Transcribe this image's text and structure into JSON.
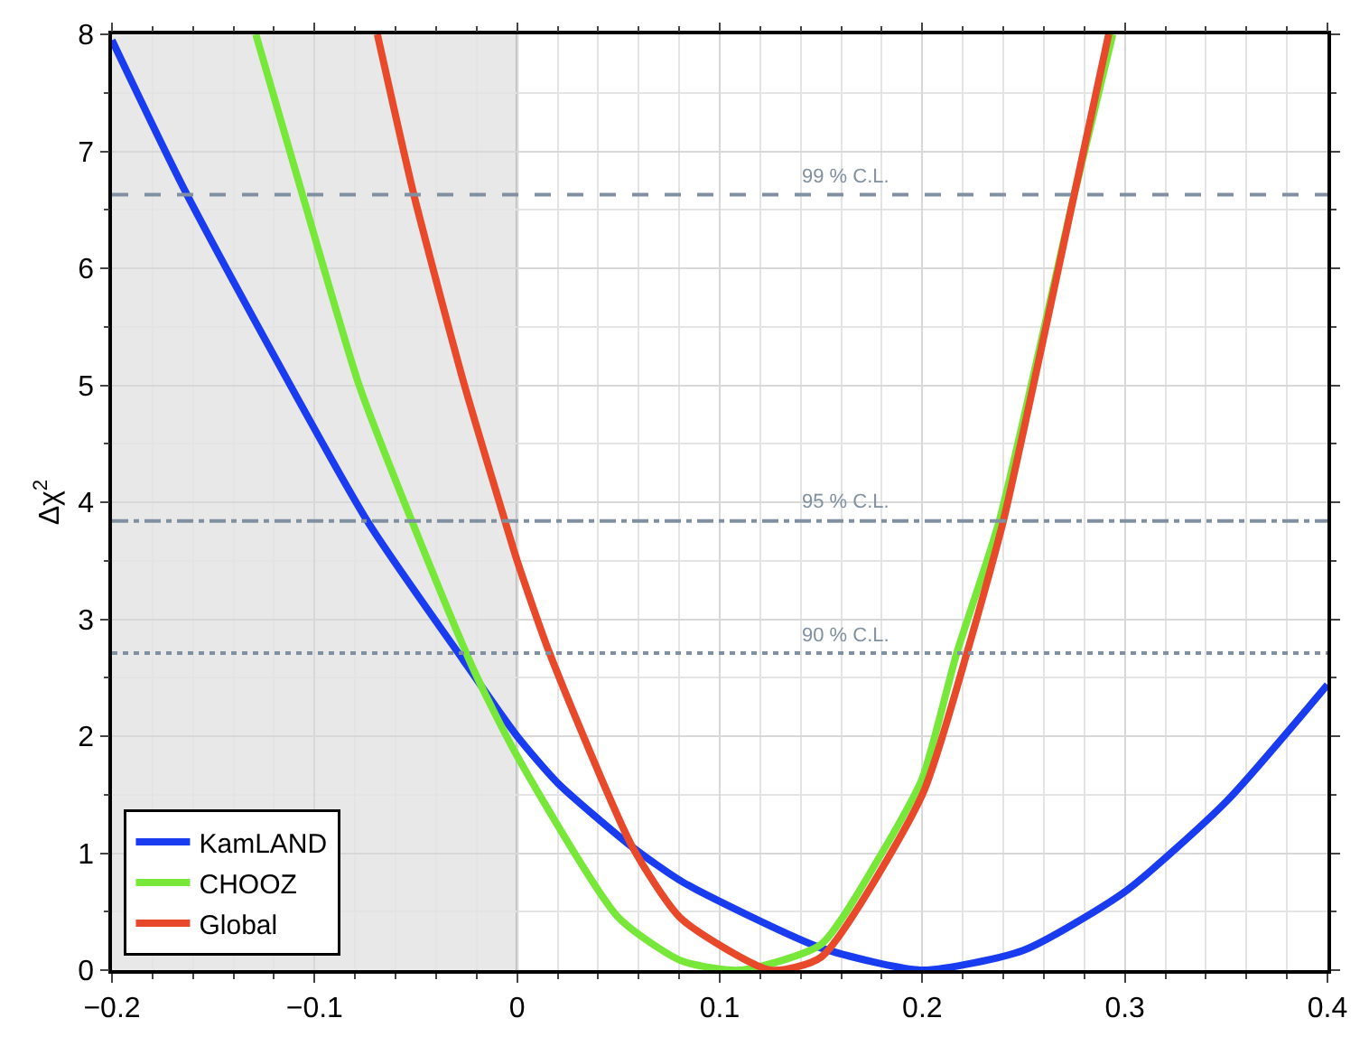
{
  "chart_data": {
    "type": "line",
    "ylabel": "Δχ$^{2}$",
    "xlim": [
      -0.2,
      0.4
    ],
    "xticks": [
      {
        "value": -0.2,
        "label": "−0.2"
      },
      {
        "value": -0.1,
        "label": "−0.1"
      },
      0,
      0.1,
      0.2,
      0.3,
      0.4
    ],
    "ylim": [
      0,
      8
    ],
    "yticks": [
      0,
      1,
      2,
      3,
      4,
      5,
      6,
      7,
      8
    ],
    "grid": true,
    "legend": "bottom left",
    "marker": "none",
    "line_style": "solid",
    "series": [
      {
        "name": "KamLAND",
        "color": "#1a3cf0",
        "x": [
          -0.2,
          -0.163,
          -0.074,
          -0.029,
          0,
          0.02,
          0.057,
          0.082,
          0.15,
          0.2,
          0.25,
          0.3,
          0.35,
          0.4
        ],
        "values": [
          7.95,
          6.63,
          3.84,
          2.71,
          2.0,
          1.6,
          1.05,
          0.75,
          0.19,
          0,
          0.17,
          0.67,
          1.44,
          2.44
        ]
      },
      {
        "name": "CHOOZ",
        "color": "#77e83a",
        "x": [
          -0.129,
          -0.106,
          -0.078,
          -0.052,
          -0.021,
          0,
          0.05,
          0.081,
          0.11,
          0.15,
          0.18,
          0.2,
          0.217,
          0.238,
          0.275,
          0.294
        ],
        "values": [
          8,
          6.63,
          5,
          3.84,
          2.55,
          1.83,
          0.45,
          0.08,
          0,
          0.22,
          1.0,
          1.64,
          2.71,
          3.84,
          6.63,
          8
        ]
      },
      {
        "name": "Global",
        "color": "#e8492a",
        "x": [
          -0.069,
          -0.051,
          -0.026,
          -0.006,
          0,
          0.016,
          0.057,
          0.081,
          0.125,
          0.15,
          0.2,
          0.222,
          0.24,
          0.275,
          0.292
        ],
        "values": [
          8,
          6.63,
          5,
          3.84,
          3.5,
          2.71,
          1.05,
          0.44,
          0,
          0.11,
          1.5,
          2.71,
          3.84,
          6.63,
          8
        ]
      }
    ],
    "ref_lines": [
      {
        "axis": "y",
        "value": 6.63,
        "label": "99 % C.L.",
        "color": "#8090a0",
        "line_style": "dashed"
      },
      {
        "axis": "y",
        "value": 3.84,
        "label": "95 % C.L.",
        "color": "#8090a0",
        "line_style": "dashdot"
      },
      {
        "axis": "y",
        "value": 2.71,
        "label": "90 % C.L.",
        "color": "#8090a0",
        "line_style": "dotted"
      }
    ],
    "bands": [
      {
        "axis": "x",
        "from": -0.2,
        "to": 0,
        "color": "#e8e8e8"
      }
    ]
  }
}
